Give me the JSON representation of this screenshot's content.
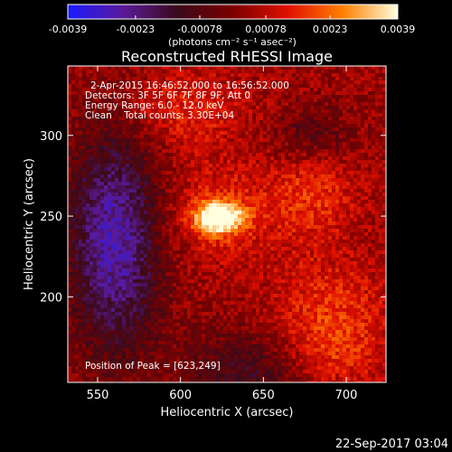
{
  "colorbar": {
    "ticks": [
      "-0.0039",
      "-0.0023",
      "-0.00078",
      "0.00078",
      "0.0023",
      "0.0039"
    ],
    "tick_values": [
      -0.0039,
      -0.0023,
      -0.00078,
      0.00078,
      0.0023,
      0.0039
    ],
    "range": [
      -0.0039,
      0.0039
    ],
    "units": "(photons cm⁻² s⁻¹ asec⁻²)",
    "colors": [
      "#1a1aff",
      "#5a1a9a",
      "#3a0a1a",
      "#7a0000",
      "#e01000",
      "#ff8000",
      "#ffffe0"
    ]
  },
  "chart_data": {
    "type": "heatmap",
    "title": "Reconstructed RHESSI Image",
    "xlabel": "Heliocentric X (arcsec)",
    "ylabel": "Heliocentric Y (arcsec)",
    "xlim": [
      532,
      724
    ],
    "ylim": [
      147,
      343
    ],
    "x_ticks": [
      550,
      600,
      650,
      700
    ],
    "y_ticks": [
      200,
      250,
      300
    ],
    "x_tick_labels": [
      "550",
      "600",
      "650",
      "700"
    ],
    "y_tick_labels": [
      "200",
      "250",
      "300"
    ],
    "info_lines": [
      "2-Apr-2015 16:46:52.000 to 16:56:52.000",
      "Detectors: 3F 5F 6F 7F 8F 9F, Att 0",
      "Energy Range: 6.0 - 12.0 keV",
      "Clean    Total counts: 3.30E+04"
    ],
    "peak_label": "Position of Peak = [623,249]",
    "peak": [
      623,
      249
    ]
  },
  "footer": {
    "date": "22-Sep-2017 03:04"
  }
}
